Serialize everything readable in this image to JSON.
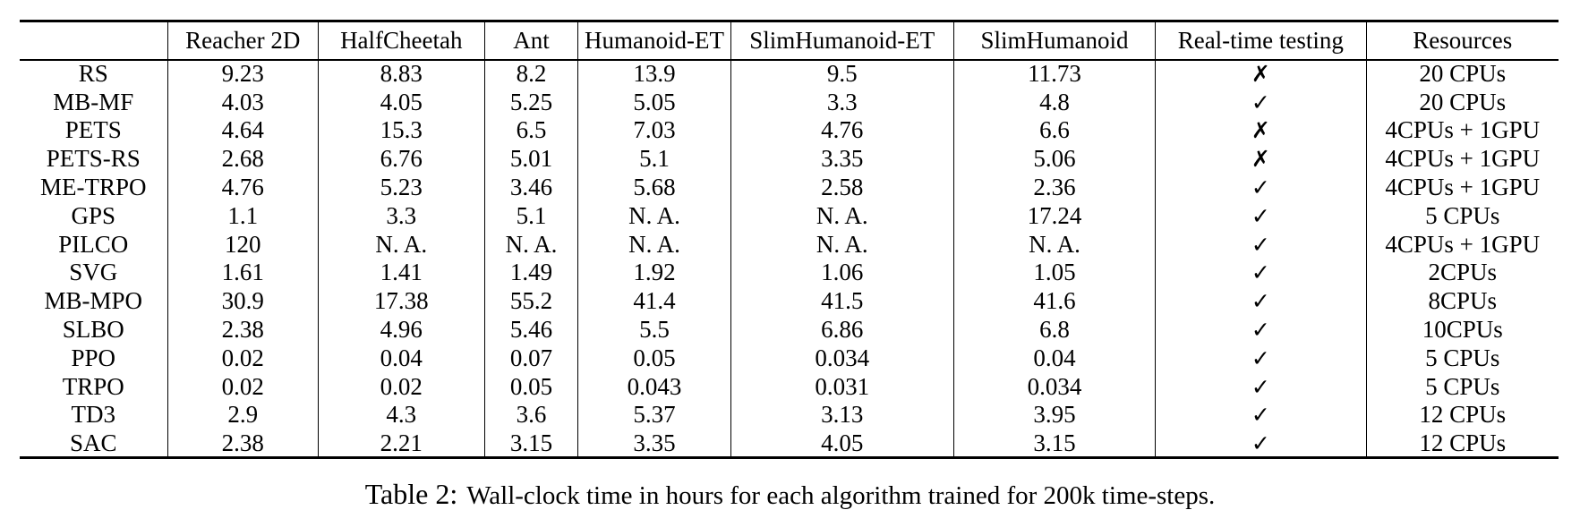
{
  "page": {
    "background_color": "#ffffff",
    "text_color": "#000000",
    "rule_color": "#000000"
  },
  "icons": {
    "check": "✓",
    "cross": "✗"
  },
  "table": {
    "columns": [
      "",
      "Reacher 2D",
      "HalfCheetah",
      "Ant",
      "Humanoid-ET",
      "SlimHumanoid-ET",
      "SlimHumanoid",
      "Real-time testing",
      "Resources"
    ],
    "rows": [
      {
        "algorithm": "RS",
        "values": [
          "9.23",
          "8.83",
          "8.2",
          "13.9",
          "9.5",
          "11.73"
        ],
        "realtime_testing": false,
        "resources": "20 CPUs"
      },
      {
        "algorithm": "MB-MF",
        "values": [
          "4.03",
          "4.05",
          "5.25",
          "5.05",
          "3.3",
          "4.8"
        ],
        "realtime_testing": true,
        "resources": "20 CPUs"
      },
      {
        "algorithm": "PETS",
        "values": [
          "4.64",
          "15.3",
          "6.5",
          "7.03",
          "4.76",
          "6.6"
        ],
        "realtime_testing": false,
        "resources": "4CPUs + 1GPU"
      },
      {
        "algorithm": "PETS-RS",
        "values": [
          "2.68",
          "6.76",
          "5.01",
          "5.1",
          "3.35",
          "5.06"
        ],
        "realtime_testing": false,
        "resources": "4CPUs + 1GPU"
      },
      {
        "algorithm": "ME-TRPO",
        "values": [
          "4.76",
          "5.23",
          "3.46",
          "5.68",
          "2.58",
          "2.36"
        ],
        "realtime_testing": true,
        "resources": "4CPUs + 1GPU"
      },
      {
        "algorithm": "GPS",
        "values": [
          "1.1",
          "3.3",
          "5.1",
          "N. A.",
          "N. A.",
          "17.24"
        ],
        "realtime_testing": true,
        "resources": "5 CPUs"
      },
      {
        "algorithm": "PILCO",
        "values": [
          "120",
          "N. A.",
          "N. A.",
          "N. A.",
          "N. A.",
          "N. A."
        ],
        "realtime_testing": true,
        "resources": "4CPUs + 1GPU"
      },
      {
        "algorithm": "SVG",
        "values": [
          "1.61",
          "1.41",
          "1.49",
          "1.92",
          "1.06",
          "1.05"
        ],
        "realtime_testing": true,
        "resources": "2CPUs"
      },
      {
        "algorithm": "MB-MPO",
        "values": [
          "30.9",
          "17.38",
          "55.2",
          "41.4",
          "41.5",
          "41.6"
        ],
        "realtime_testing": true,
        "resources": "8CPUs"
      },
      {
        "algorithm": "SLBO",
        "values": [
          "2.38",
          "4.96",
          "5.46",
          "5.5",
          "6.86",
          "6.8"
        ],
        "realtime_testing": true,
        "resources": "10CPUs"
      },
      {
        "algorithm": "PPO",
        "values": [
          "0.02",
          "0.04",
          "0.07",
          "0.05",
          "0.034",
          "0.04"
        ],
        "realtime_testing": true,
        "resources": "5 CPUs"
      },
      {
        "algorithm": "TRPO",
        "values": [
          "0.02",
          "0.02",
          "0.05",
          "0.043",
          "0.031",
          "0.034"
        ],
        "realtime_testing": true,
        "resources": "5 CPUs"
      },
      {
        "algorithm": "TD3",
        "values": [
          "2.9",
          "4.3",
          "3.6",
          "5.37",
          "3.13",
          "3.95"
        ],
        "realtime_testing": true,
        "resources": "12 CPUs"
      },
      {
        "algorithm": "SAC",
        "values": [
          "2.38",
          "2.21",
          "3.15",
          "3.35",
          "4.05",
          "3.15"
        ],
        "realtime_testing": true,
        "resources": "12 CPUs"
      }
    ]
  },
  "caption": {
    "label": "Table 2:",
    "text": "Wall-clock time in hours for each algorithm trained for 200k time-steps."
  }
}
